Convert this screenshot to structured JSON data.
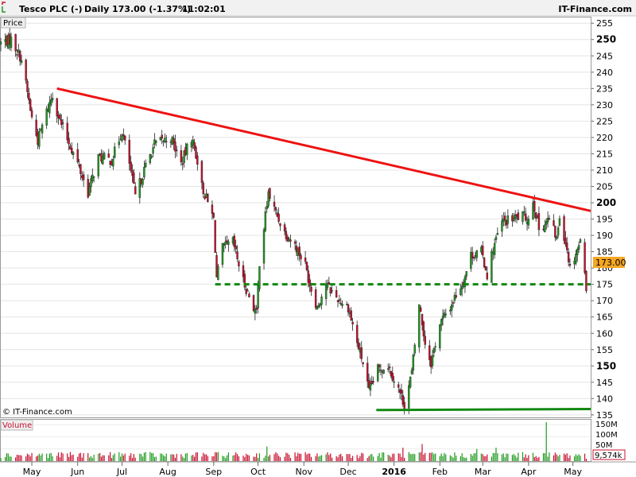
{
  "header": {
    "instrument": "Tesco PLC (-)",
    "interval": "Daily",
    "quote": "173.00 (-1.37%)",
    "time": "11:02:01",
    "brand": "IT-Finance.com"
  },
  "price_panel": {
    "label": "Price",
    "copyright": "© IT-Finance.com",
    "last_price_tag": "173.00"
  },
  "volume_panel": {
    "label": "Volume",
    "ticks": [
      "150M",
      "100M",
      "50M"
    ],
    "last_volume_tag": "9,574k"
  },
  "colors": {
    "up": "#1f9a1f",
    "down": "#c8102e",
    "wick": "#222222",
    "resistance": "#ee1111",
    "support": "#118811",
    "tag_bg": "#f5a623"
  },
  "chart_data": [
    {
      "type": "line",
      "subtype": "candlestick",
      "title": "Tesco PLC (-)",
      "interval": "Daily",
      "ylabel": "Price",
      "ylim": [
        134,
        257
      ],
      "y_ticks": [
        135,
        140,
        145,
        150,
        155,
        160,
        165,
        170,
        175,
        180,
        185,
        190,
        195,
        200,
        205,
        210,
        215,
        220,
        225,
        230,
        235,
        240,
        245,
        250,
        255
      ],
      "y_ticks_bold": [
        150,
        200,
        250
      ],
      "xlim": [
        "2015-04-10",
        "2016-05-13"
      ],
      "x_ticks": [
        {
          "date": "2015-05-01",
          "label": "May"
        },
        {
          "date": "2015-06-01",
          "label": "Jun"
        },
        {
          "date": "2015-07-01",
          "label": "Jul"
        },
        {
          "date": "2015-08-01",
          "label": "Aug"
        },
        {
          "date": "2015-09-01",
          "label": "Sep"
        },
        {
          "date": "2015-10-01",
          "label": "Oct"
        },
        {
          "date": "2015-11-01",
          "label": "Nov"
        },
        {
          "date": "2015-12-01",
          "label": "Dec"
        },
        {
          "date": "2016-01-01",
          "label": "2016"
        },
        {
          "date": "2016-02-01",
          "label": "Feb"
        },
        {
          "date": "2016-03-01",
          "label": "Mar"
        },
        {
          "date": "2016-04-01",
          "label": "Apr"
        },
        {
          "date": "2016-05-01",
          "label": "May"
        }
      ],
      "last_price": 173.0,
      "close_path": [
        [
          "2015-04-10",
          249
        ],
        [
          "2015-04-17",
          250
        ],
        [
          "2015-04-24",
          244
        ],
        [
          "2015-05-01",
          226
        ],
        [
          "2015-05-05",
          219
        ],
        [
          "2015-05-11",
          228
        ],
        [
          "2015-05-15",
          233
        ],
        [
          "2015-05-20",
          225
        ],
        [
          "2015-06-01",
          212
        ],
        [
          "2015-06-08",
          203
        ],
        [
          "2015-06-15",
          214
        ],
        [
          "2015-06-24",
          213
        ],
        [
          "2015-07-01",
          222
        ],
        [
          "2015-07-06",
          212
        ],
        [
          "2015-07-10",
          202
        ],
        [
          "2015-07-16",
          210
        ],
        [
          "2015-07-23",
          218
        ],
        [
          "2015-08-03",
          220
        ],
        [
          "2015-08-10",
          212
        ],
        [
          "2015-08-17",
          220
        ],
        [
          "2015-08-21",
          213
        ],
        [
          "2015-08-24",
          205
        ],
        [
          "2015-09-01",
          195
        ],
        [
          "2015-09-03",
          177
        ],
        [
          "2015-09-07",
          186
        ],
        [
          "2015-09-14",
          188
        ],
        [
          "2015-09-21",
          176
        ],
        [
          "2015-09-28",
          168
        ],
        [
          "2015-09-30",
          166
        ],
        [
          "2015-10-02",
          182
        ],
        [
          "2015-10-06",
          196
        ],
        [
          "2015-10-08",
          203
        ],
        [
          "2015-10-12",
          198
        ],
        [
          "2015-10-19",
          191
        ],
        [
          "2015-10-26",
          187
        ],
        [
          "2015-11-02",
          181
        ],
        [
          "2015-11-05",
          175
        ],
        [
          "2015-11-10",
          168
        ],
        [
          "2015-11-16",
          175
        ],
        [
          "2015-11-23",
          171
        ],
        [
          "2015-12-01",
          168
        ],
        [
          "2015-12-07",
          157
        ],
        [
          "2015-12-11",
          151
        ],
        [
          "2015-12-15",
          142
        ],
        [
          "2015-12-21",
          149
        ],
        [
          "2015-12-28",
          150
        ],
        [
          "2016-01-04",
          143
        ],
        [
          "2016-01-08",
          138
        ],
        [
          "2016-01-13",
          148
        ],
        [
          "2016-01-18",
          169
        ],
        [
          "2016-01-22",
          157
        ],
        [
          "2016-01-26",
          151
        ],
        [
          "2016-02-01",
          163
        ],
        [
          "2016-02-08",
          168
        ],
        [
          "2016-02-12",
          172
        ],
        [
          "2016-02-17",
          176
        ],
        [
          "2016-02-22",
          184
        ],
        [
          "2016-02-29",
          185
        ],
        [
          "2016-03-04",
          178
        ],
        [
          "2016-03-08",
          186
        ],
        [
          "2016-03-14",
          194
        ],
        [
          "2016-03-21",
          195
        ],
        [
          "2016-03-28",
          196
        ],
        [
          "2016-04-01",
          195
        ],
        [
          "2016-04-04",
          201
        ],
        [
          "2016-04-08",
          192
        ],
        [
          "2016-04-15",
          195
        ],
        [
          "2016-04-20",
          189
        ],
        [
          "2016-04-22",
          196
        ],
        [
          "2016-04-27",
          186
        ],
        [
          "2016-04-29",
          180
        ],
        [
          "2016-05-04",
          186
        ],
        [
          "2016-05-06",
          188
        ],
        [
          "2016-05-09",
          180
        ],
        [
          "2016-05-10",
          173
        ]
      ],
      "annotations": [
        {
          "kind": "resistance_trendline",
          "from": [
            "2015-05-18",
            235
          ],
          "to": [
            "2016-05-13",
            197.5
          ]
        },
        {
          "kind": "support_level",
          "from": [
            "2015-09-02",
            175
          ],
          "to": [
            "2016-05-13",
            175
          ],
          "dashed": true
        },
        {
          "kind": "support_level",
          "from": [
            "2015-12-20",
            136.5
          ],
          "to": [
            "2016-05-13",
            136.8
          ],
          "dashed": false
        }
      ]
    },
    {
      "type": "bar",
      "ylabel": "Volume",
      "y_ticks": [
        "150M",
        "100M",
        "50M"
      ],
      "ylim_millions": [
        0,
        170
      ],
      "typical_volume_millions": 25,
      "last_volume": "9,574k",
      "spikes": [
        [
          "2015-10-07",
          60
        ],
        [
          "2016-01-07",
          55
        ],
        [
          "2016-01-20",
          70
        ],
        [
          "2016-02-26",
          50
        ],
        [
          "2016-03-10",
          55
        ],
        [
          "2016-04-13",
          160
        ]
      ]
    }
  ]
}
